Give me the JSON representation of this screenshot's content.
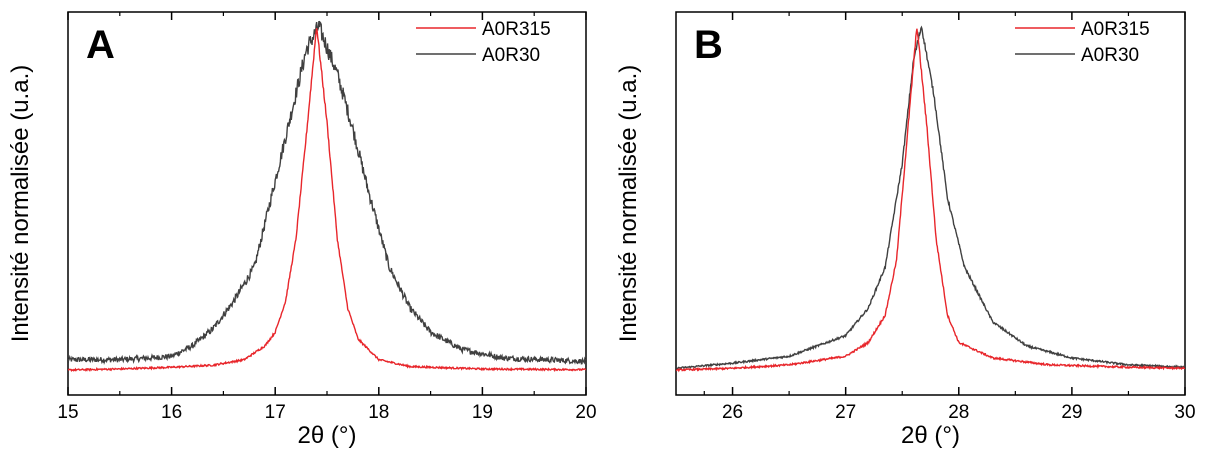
{
  "chart_data": [
    {
      "type": "line",
      "panel_label": "A",
      "xlabel": "2θ (°)",
      "ylabel": "Intensité normalisée (u.a.)",
      "xlim": [
        15,
        20
      ],
      "ylim": [
        0,
        1
      ],
      "xticks": [
        "15",
        "16",
        "17",
        "18",
        "19",
        "20"
      ],
      "grid": false,
      "legend_position": "top-right",
      "series": [
        {
          "name": "A0R315",
          "color": "#e8262b",
          "points": [
            [
              15,
              0.0
            ],
            [
              15.5,
              0.003
            ],
            [
              16,
              0.008
            ],
            [
              16.4,
              0.014
            ],
            [
              16.7,
              0.03
            ],
            [
              16.9,
              0.07
            ],
            [
              17.0,
              0.11
            ],
            [
              17.1,
              0.2
            ],
            [
              17.2,
              0.38
            ],
            [
              17.3,
              0.68
            ],
            [
              17.4,
              1.0
            ],
            [
              17.5,
              0.72
            ],
            [
              17.6,
              0.38
            ],
            [
              17.7,
              0.18
            ],
            [
              17.8,
              0.09
            ],
            [
              18.0,
              0.03
            ],
            [
              18.3,
              0.01
            ],
            [
              19,
              0.003
            ],
            [
              20,
              0.001
            ]
          ]
        },
        {
          "name": "A0R30",
          "color": "#404040",
          "points": [
            [
              15,
              0.03
            ],
            [
              15.5,
              0.03
            ],
            [
              15.8,
              0.035
            ],
            [
              16.0,
              0.04
            ],
            [
              16.2,
              0.07
            ],
            [
              16.4,
              0.12
            ],
            [
              16.6,
              0.2
            ],
            [
              16.8,
              0.3
            ],
            [
              17.0,
              0.55
            ],
            [
              17.15,
              0.74
            ],
            [
              17.3,
              0.93
            ],
            [
              17.42,
              1.0
            ],
            [
              17.6,
              0.86
            ],
            [
              17.75,
              0.7
            ],
            [
              17.9,
              0.52
            ],
            [
              18.1,
              0.3
            ],
            [
              18.3,
              0.18
            ],
            [
              18.5,
              0.11
            ],
            [
              18.8,
              0.06
            ],
            [
              19.2,
              0.035
            ],
            [
              20,
              0.025
            ]
          ]
        }
      ]
    },
    {
      "type": "line",
      "panel_label": "B",
      "xlabel": "2θ (°)",
      "ylabel": "Intensité normalisée (u.a.)",
      "xlim": [
        25.5,
        30
      ],
      "ylim": [
        0,
        1
      ],
      "xticks": [
        "26",
        "27",
        "28",
        "29",
        "30"
      ],
      "grid": false,
      "legend_position": "top-right",
      "series": [
        {
          "name": "A0R315",
          "color": "#e8262b",
          "points": [
            [
              25.5,
              0.0
            ],
            [
              26,
              0.005
            ],
            [
              26.5,
              0.015
            ],
            [
              27.0,
              0.04
            ],
            [
              27.2,
              0.08
            ],
            [
              27.35,
              0.16
            ],
            [
              27.45,
              0.32
            ],
            [
              27.55,
              0.7
            ],
            [
              27.63,
              1.0
            ],
            [
              27.72,
              0.7
            ],
            [
              27.8,
              0.38
            ],
            [
              27.9,
              0.16
            ],
            [
              28.0,
              0.08
            ],
            [
              28.3,
              0.035
            ],
            [
              28.8,
              0.015
            ],
            [
              29.5,
              0.008
            ],
            [
              30,
              0.005
            ]
          ]
        },
        {
          "name": "A0R30",
          "color": "#404040",
          "points": [
            [
              25.5,
              0.005
            ],
            [
              26,
              0.02
            ],
            [
              26.5,
              0.04
            ],
            [
              27.0,
              0.1
            ],
            [
              27.2,
              0.18
            ],
            [
              27.35,
              0.3
            ],
            [
              27.5,
              0.6
            ],
            [
              27.6,
              0.9
            ],
            [
              27.67,
              1.0
            ],
            [
              27.78,
              0.8
            ],
            [
              27.9,
              0.5
            ],
            [
              28.05,
              0.3
            ],
            [
              28.3,
              0.14
            ],
            [
              28.6,
              0.07
            ],
            [
              29.0,
              0.035
            ],
            [
              29.5,
              0.015
            ],
            [
              30,
              0.008
            ]
          ]
        }
      ]
    }
  ]
}
